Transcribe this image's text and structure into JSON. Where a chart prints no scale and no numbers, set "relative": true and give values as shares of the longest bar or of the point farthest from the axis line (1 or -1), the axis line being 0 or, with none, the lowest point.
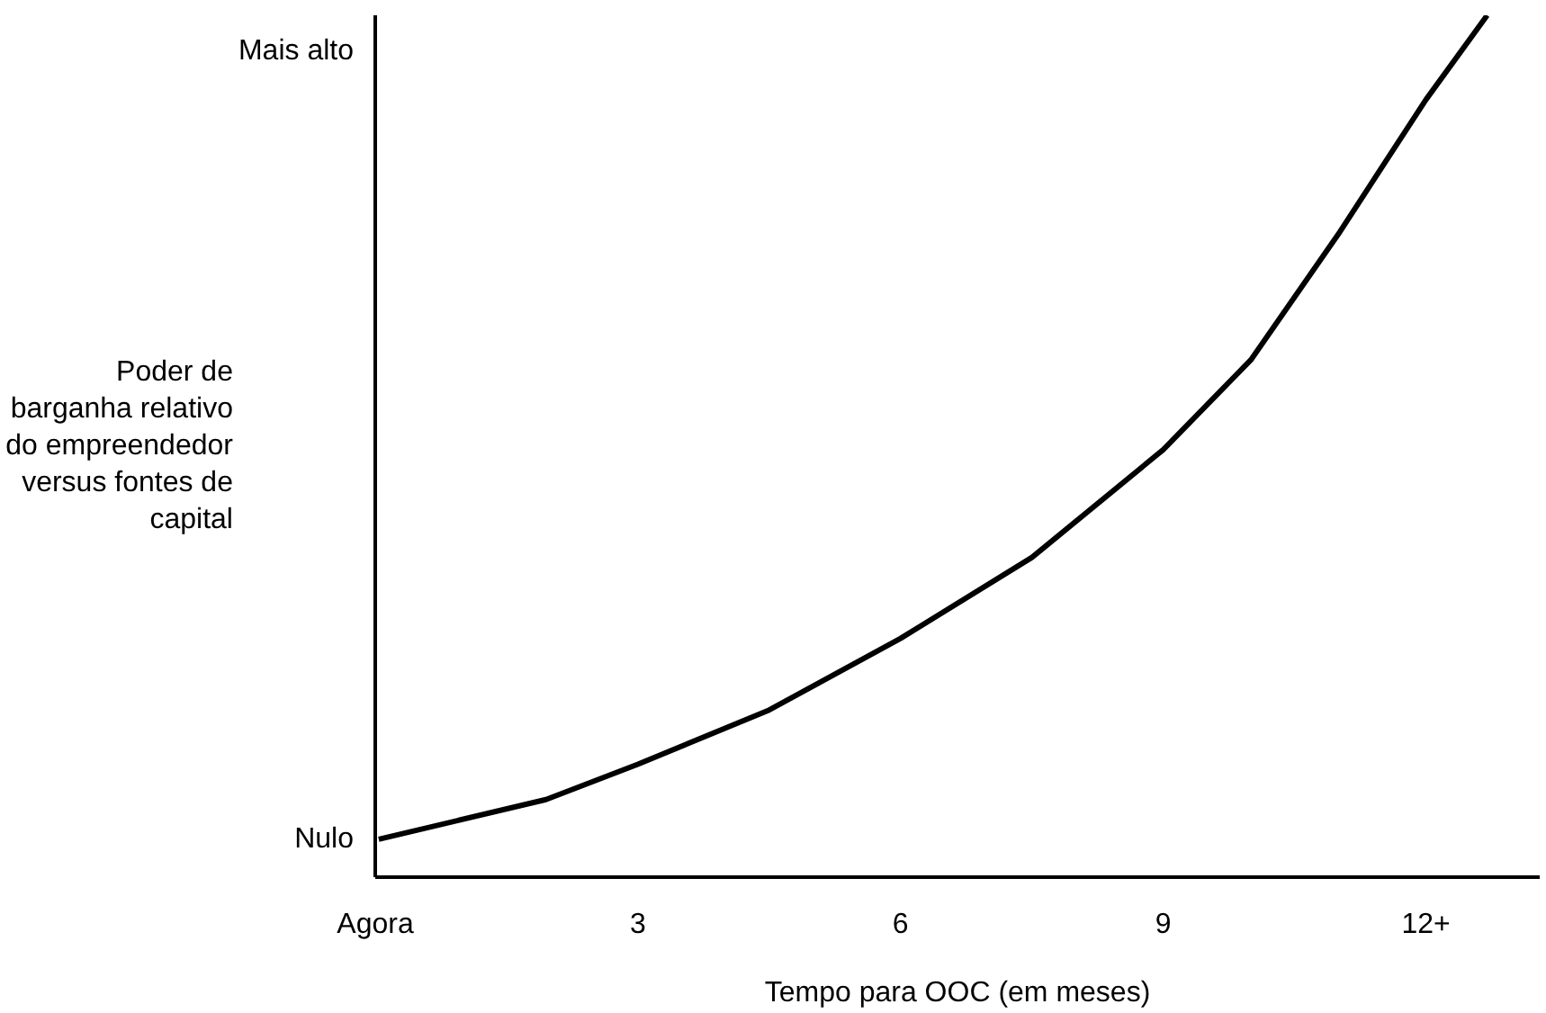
{
  "chart_data": {
    "type": "line",
    "relative": true,
    "xlabel": "Tempo para OOC (em meses)",
    "ylabel": "Poder de\nbarganha relativo\ndo empreendedor\nversus fontes de\ncapital",
    "annotations": [
      "Nulo",
      "Mais alto"
    ],
    "x": [
      0.04,
      1.95,
      3,
      4.5,
      6,
      7.5,
      9,
      10,
      11,
      12,
      12.7
    ],
    "xlim": [
      0,
      13.3
    ],
    "xticks": [
      {
        "value": 0,
        "label": "Agora"
      },
      3,
      6,
      9,
      {
        "value": 12,
        "label": "12+"
      }
    ],
    "series": [
      {
        "color": "#000000",
        "values": [
          0.044,
          0.09,
          0.131,
          0.194,
          0.277,
          0.371,
          0.496,
          0.6,
          0.746,
          0.902,
          1.0
        ]
      }
    ],
    "grid": false
  }
}
